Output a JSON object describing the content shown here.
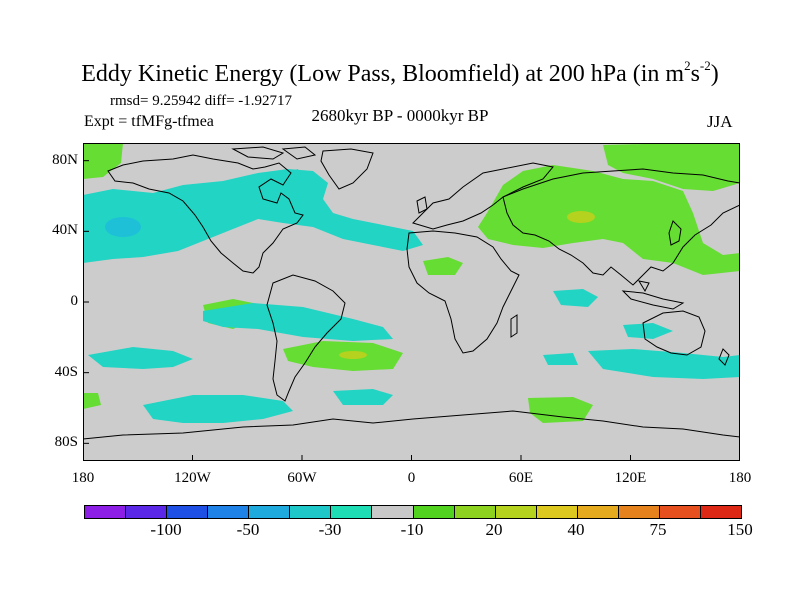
{
  "title_main": "Eddy Kinetic Energy (Low Pass, Bloomfield) at 200 hPa (in m",
  "title_sup1": "2",
  "title_s": "s",
  "title_sup2": "-2",
  "title_close": ")",
  "rmsd_text": "rmsd= 9.25942 diff= -1.92717",
  "expt_text": "Expt = tfMFg-tfmea",
  "period_text": "2680kyr BP - 0000kyr BP",
  "season_text": "JJA",
  "y_ticks": [
    {
      "label": "80N",
      "lat": 80
    },
    {
      "label": "40N",
      "lat": 40
    },
    {
      "label": "0",
      "lat": 0
    },
    {
      "label": "40S",
      "lat": -40
    },
    {
      "label": "80S",
      "lat": -80
    }
  ],
  "x_ticks": [
    {
      "label": "180",
      "lon": -180
    },
    {
      "label": "120W",
      "lon": -120
    },
    {
      "label": "60W",
      "lon": -60
    },
    {
      "label": "0",
      "lon": 0
    },
    {
      "label": "60E",
      "lon": 60
    },
    {
      "label": "120E",
      "lon": 120
    },
    {
      "label": "180",
      "lon": 180
    }
  ],
  "colorbar_colors": [
    "#8c1ee6",
    "#5a28e6",
    "#1e50e6",
    "#1e82e6",
    "#1eaadc",
    "#1ec8c8",
    "#1edcb4",
    "#c8c8c8",
    "#50d21e",
    "#8cd21e",
    "#b4d21e",
    "#dcc81e",
    "#e6aa1e",
    "#e6821e",
    "#e6501e",
    "#dc2814"
  ],
  "colorbar_labels": [
    {
      "label": "-100",
      "pos": 2
    },
    {
      "label": "-50",
      "pos": 4
    },
    {
      "label": "-30",
      "pos": 6
    },
    {
      "label": "-10",
      "pos": 8
    },
    {
      "label": "20",
      "pos": 10
    },
    {
      "label": "40",
      "pos": 12
    },
    {
      "label": "75",
      "pos": 14
    },
    {
      "label": "150",
      "pos": 16
    }
  ],
  "colors": {
    "background": "#cccccc",
    "positive": "#66dd33",
    "positive_strong": "#b4d21e",
    "negative": "#22d4c4",
    "negative_strong": "#1ec0d8",
    "coast": "#000000"
  }
}
